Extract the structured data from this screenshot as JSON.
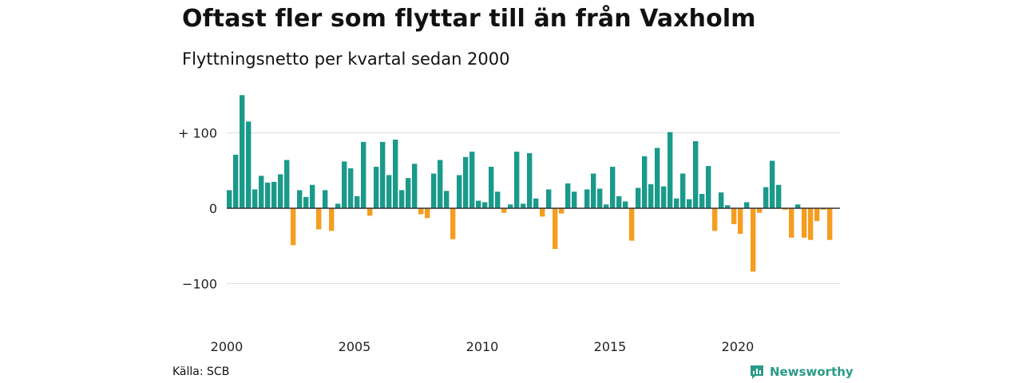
{
  "title": "Oftast fler som flyttar till än från Vaxholm",
  "subtitle": "Flyttningsnetto per kvartal sedan 2000",
  "source": "Källa: SCB",
  "brand": {
    "name": "Newsworthy",
    "logo_icon": "newsworthy-logo-icon",
    "color": "#2a9a88"
  },
  "colors": {
    "positive": "#1a9a8a",
    "negative": "#f59d1f",
    "grid": "#dddddd",
    "axis": "#333333"
  },
  "chart_data": {
    "type": "bar",
    "xlabel": "",
    "ylabel": "",
    "ylim": [
      -160,
      160
    ],
    "y_ticks": [
      {
        "value": 100,
        "label": "+ 100"
      },
      {
        "value": 0,
        "label": "0"
      },
      {
        "value": -100,
        "label": "−100"
      }
    ],
    "x_ticks": [
      {
        "value": 2000,
        "label": "2000"
      },
      {
        "value": 2005,
        "label": "2005"
      },
      {
        "value": 2010,
        "label": "2010"
      },
      {
        "value": 2015,
        "label": "2015"
      },
      {
        "value": 2020,
        "label": "2020"
      }
    ],
    "grid": true,
    "legend": "none",
    "categories": [
      "2000K1",
      "2000K2",
      "2000K3",
      "2000K4",
      "2001K1",
      "2001K2",
      "2001K3",
      "2001K4",
      "2002K1",
      "2002K2",
      "2002K3",
      "2002K4",
      "2003K1",
      "2003K2",
      "2003K3",
      "2003K4",
      "2004K1",
      "2004K2",
      "2004K3",
      "2004K4",
      "2005K1",
      "2005K2",
      "2005K3",
      "2005K4",
      "2006K1",
      "2006K2",
      "2006K3",
      "2006K4",
      "2007K1",
      "2007K2",
      "2007K3",
      "2007K4",
      "2008K1",
      "2008K2",
      "2008K3",
      "2008K4",
      "2009K1",
      "2009K2",
      "2009K3",
      "2009K4",
      "2010K1",
      "2010K2",
      "2010K3",
      "2010K4",
      "2011K1",
      "2011K2",
      "2011K3",
      "2011K4",
      "2012K1",
      "2012K2",
      "2012K3",
      "2012K4",
      "2013K1",
      "2013K2",
      "2013K3",
      "2013K4",
      "2014K1",
      "2014K2",
      "2014K3",
      "2014K4",
      "2015K1",
      "2015K2",
      "2015K3",
      "2015K4",
      "2016K1",
      "2016K2",
      "2016K3",
      "2016K4",
      "2017K1",
      "2017K2",
      "2017K3",
      "2017K4",
      "2018K1",
      "2018K2",
      "2018K3",
      "2018K4",
      "2019K1",
      "2019K2",
      "2019K3",
      "2019K4",
      "2020K1",
      "2020K2",
      "2020K3",
      "2020K4",
      "2021K1",
      "2021K2",
      "2021K3",
      "2021K4",
      "2022K1",
      "2022K2",
      "2022K3",
      "2022K4",
      "2023K1",
      "2023K2",
      "2023K3",
      "2023K4"
    ],
    "values": [
      24,
      71,
      150,
      115,
      25,
      43,
      34,
      35,
      45,
      64,
      -49,
      24,
      15,
      31,
      -28,
      24,
      -30,
      6,
      62,
      53,
      16,
      88,
      -10,
      55,
      88,
      44,
      91,
      24,
      40,
      59,
      -8,
      -13,
      46,
      64,
      23,
      -41,
      44,
      68,
      75,
      10,
      8,
      55,
      22,
      -6,
      5,
      75,
      6,
      73,
      13,
      -11,
      25,
      -54,
      -7,
      33,
      22,
      0,
      25,
      46,
      26,
      5,
      55,
      16,
      9,
      -43,
      27,
      69,
      32,
      80,
      29,
      101,
      13,
      46,
      12,
      89,
      19,
      56,
      -30,
      21,
      4,
      -21,
      -34,
      8,
      -84,
      -6,
      28,
      63,
      31,
      -2,
      -39,
      5,
      -39,
      -42,
      -17,
      -2,
      -42,
      0
    ]
  }
}
